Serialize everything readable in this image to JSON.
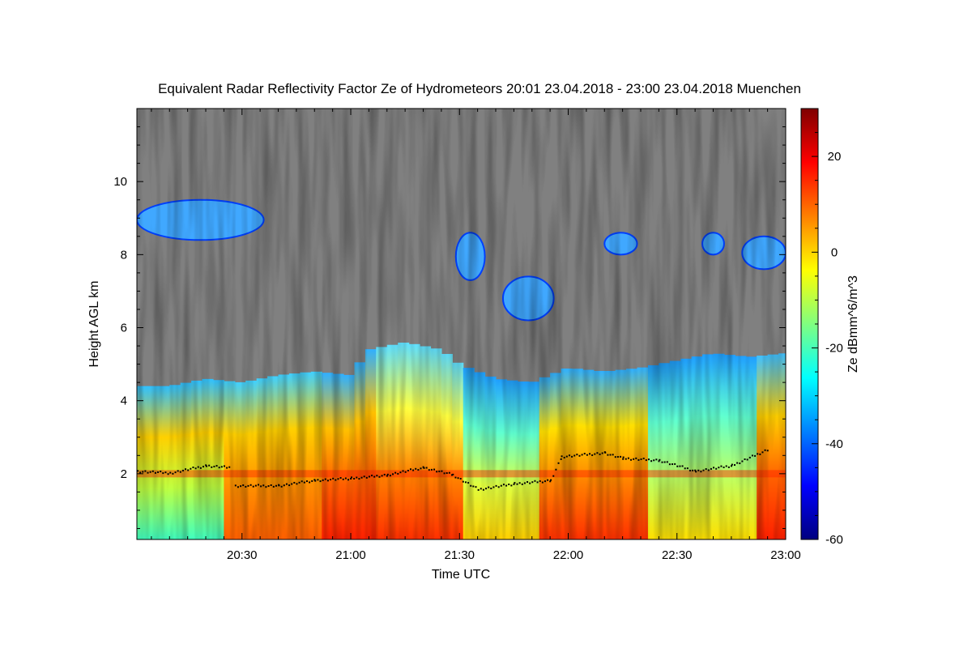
{
  "chart_data": {
    "type": "heatmap",
    "title": "Equivalent Radar Reflectivity Factor Ze of Hydrometeors   20:01 23.04.2018 - 23:00 23.04.2018 Muenchen",
    "xlabel": "Time UTC",
    "ylabel": "Height AGL km",
    "colorbar_label": "Ze dBmm^6/m^3",
    "xlim": [
      "20:01",
      "23:00"
    ],
    "ylim": [
      0.2,
      12.0
    ],
    "clim": [
      -60,
      30
    ],
    "x_ticks": [
      {
        "value": "20:30",
        "label": "20:30"
      },
      {
        "value": "21:00",
        "label": "21:00"
      },
      {
        "value": "21:30",
        "label": "21:30"
      },
      {
        "value": "22:00",
        "label": "22:00"
      },
      {
        "value": "22:30",
        "label": "22:30"
      },
      {
        "value": "23:00",
        "label": "23:00"
      }
    ],
    "y_ticks": [
      {
        "value": 2,
        "label": "2"
      },
      {
        "value": 4,
        "label": "4"
      },
      {
        "value": 6,
        "label": "6"
      },
      {
        "value": 8,
        "label": "8"
      },
      {
        "value": 10,
        "label": "10"
      }
    ],
    "colorbar_ticks": [
      {
        "value": 20,
        "label": "20"
      },
      {
        "value": 0,
        "label": "0"
      },
      {
        "value": -20,
        "label": "-20"
      },
      {
        "value": -40,
        "label": "-40"
      },
      {
        "value": -60,
        "label": "-60"
      }
    ],
    "colormap": [
      "#00007f",
      "#0000ff",
      "#0080ff",
      "#00ffff",
      "#80ff80",
      "#ffff00",
      "#ff8000",
      "#ff0000",
      "#7f0000"
    ],
    "no_signal_color": "#808080",
    "cloud_top_km": [
      [
        "20:01",
        4.4
      ],
      [
        "20:10",
        4.4
      ],
      [
        "20:20",
        4.6
      ],
      [
        "20:30",
        4.5
      ],
      [
        "20:40",
        4.7
      ],
      [
        "20:50",
        4.8
      ],
      [
        "21:00",
        4.7
      ],
      [
        "21:05",
        5.4
      ],
      [
        "21:15",
        5.6
      ],
      [
        "21:25",
        5.4
      ],
      [
        "21:30",
        5.0
      ],
      [
        "21:40",
        4.6
      ],
      [
        "21:50",
        4.5
      ],
      [
        "22:00",
        4.9
      ],
      [
        "22:10",
        4.8
      ],
      [
        "22:20",
        4.9
      ],
      [
        "22:30",
        5.1
      ],
      [
        "22:40",
        5.3
      ],
      [
        "22:50",
        5.2
      ],
      [
        "23:00",
        5.3
      ]
    ],
    "high_cloud_patches": [
      {
        "t0": "20:01",
        "t1": "20:36",
        "h0": 8.4,
        "h1": 9.5
      },
      {
        "t0": "21:29",
        "t1": "21:37",
        "h0": 7.3,
        "h1": 8.6
      },
      {
        "t0": "21:42",
        "t1": "21:56",
        "h0": 6.2,
        "h1": 7.4
      },
      {
        "t0": "22:10",
        "t1": "22:19",
        "h0": 8.0,
        "h1": 8.6
      },
      {
        "t0": "22:37",
        "t1": "22:43",
        "h0": 8.0,
        "h1": 8.6
      },
      {
        "t0": "22:48",
        "t1": "23:00",
        "h0": 7.6,
        "h1": 8.5
      }
    ],
    "melting_layer_km": [
      [
        "20:01",
        2.1
      ],
      [
        "20:10",
        2.05
      ],
      [
        "20:20",
        2.25
      ],
      [
        "20:27",
        2.2
      ],
      [
        "20:28",
        1.7
      ],
      [
        "20:40",
        1.7
      ],
      [
        "20:50",
        1.85
      ],
      [
        "21:00",
        1.9
      ],
      [
        "21:10",
        2.0
      ],
      [
        "21:20",
        2.2
      ],
      [
        "21:28",
        2.0
      ],
      [
        "21:35",
        1.6
      ],
      [
        "21:45",
        1.75
      ],
      [
        "21:55",
        1.85
      ],
      [
        "21:58",
        2.5
      ],
      [
        "22:10",
        2.6
      ],
      [
        "22:15",
        2.45
      ],
      [
        "22:25",
        2.4
      ],
      [
        "22:35",
        2.1
      ],
      [
        "22:45",
        2.25
      ],
      [
        "22:55",
        2.7
      ]
    ]
  }
}
